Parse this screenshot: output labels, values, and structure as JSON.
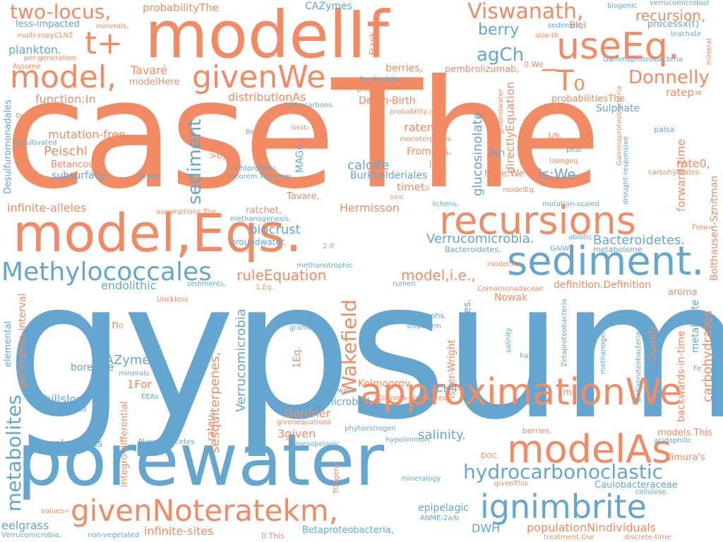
{
  "colors": {
    "orange": "#f28b63",
    "blue": "#64a6d0",
    "background": "#ffffff"
  },
  "words": {
    "gypsum": "gypsum",
    "caseThe": "caseThe",
    "modelIf": "modelIf",
    "porewater": "porewater",
    "modelEqs": "model,Eqs.",
    "approximationWe": "approximationWe",
    "modelAs": "modelAs",
    "recursions": "recursions",
    "sediment_dot": "sediment.",
    "givenNoteratekm": "givenNoteratekm,",
    "ignimbrite": "ignimbrite",
    "useEq": "useEq.",
    "model_comma": "model,",
    "givenWe": "givenWe",
    "Methylococcales": "Methylococcales",
    "hydrocarbonoclastic": "hydrocarbonoclastic",
    "t_plus": "t+",
    "two_locus": "two-locus,",
    "Viswanath": "Viswanath,",
    "T_box": "̅T₀",
    "Donnelly": "Donnelly",
    "agCh": "agCh",
    "berry": "berry",
    "recursion": "recursion,",
    "Wakefield": "Wakefield",
    "metabolites": "metabolites",
    "sediment_v": "sediment",
    "Verrucomicrobia_dot": "Verrucomicrobia.",
    "Bacteroidetes_dot": "Bacteroidetes.",
    "model_ie": "model,i.e.,",
    "ruleEquation": "ruleEquation",
    "endolithic": "endolithic",
    "infinite_alleles": "infinite-alleles",
    "Hermisson": "Hermisson",
    "biocrust": "biocrust",
    "mutation_free": "mutation-free",
    "Peischl": "Peischl",
    "calcite": "calcite",
    "function_In": "function:In",
    "plankton": "plankton.",
    "Tavare_acc": "Tavaré",
    "distributionAs": "distributionAs",
    "ratem": "ratem,",
    "glucosinolate": "glucosinolate",
    "CAZyme": "CAZyme",
    "CAZymes": "CAZymes",
    "less_impacted": "less-impacted",
    "probabilityThe": "probabilityThe",
    "Blei": "Blei",
    "process": "processx(t)",
    "directlyEquation": "directlyEquation",
    "ratep": "ratep=",
    "rate0": "rate0,",
    "is_We": "is:We",
    "Sulphate": "Sulphate",
    "berries_comma": "berries,",
    "pembrolizumab": "pembrolizumab,",
    "modelHere": "modelHere",
    "Death_Birth": "Death-Birth",
    "Betancourt": "Betancourt",
    "subsurface": "subsurface",
    "MAGs": "MAGs.",
    "Burkholderiales": "Burkholderiales",
    "timet": "timet₀",
    "FromEqs": "FromEqs.",
    "fen": "fen",
    "have_We": "have:We",
    "forward_time": "forward-time",
    "carbohydrates_v": "carbohydrates",
    "Bolthausen": "Bolthausen-Sznitman",
    "sesquiterpenes": "sesquiterpenes,",
    "Verrucomicrobia_v": "Verrucomicrobia",
    "definition": "definition.Definition",
    "metabolite": "metabolite",
    "aroma": "aroma",
    "Nowak": "Nowak",
    "Durrett": "Durrett",
    "backwards": "backwards-in-time",
    "Kolmogrov": "Kolmogrov",
    "Fisher_Wright": "Fisher-Wright",
    "metatranscriptomes": "metatranscriptomes.",
    "CH4": "CH4",
    "microbial": "microbial",
    "salinity_dot": "salinity.",
    "Gardner": "Gardner",
    "given3": "3given",
    "For1": "1For",
    "borehole": "borehole",
    "hillslope": "hillslope",
    "calcareous": "calcareous",
    "eelgrass": "eelgrass",
    "infinite_sites": "infinite-sites",
    "DWH": "DWH",
    "populationN": "populationNindividuals",
    "Caulobacteraceae": "Caulobacteraceae",
    "epipelagic": "epipelagic",
    "Betaproteobacteria": "Betaproteobacteria,",
    "models_This": "models.This",
    "Kimuras": "Kimura's",
    "generation_interval": "generation-interval",
    "integro_differential": "integro-differential",
    "ratemu": "rateμ,",
    "elemental": "elemental",
    "n0": "n₀",
    "Eq1": "1Eq.",
    "m_abs": "|m|",
    "Desulfuromonadales": "Desulfuromonadales",
    "groundwater_dot": "groundwater.",
    "ratchet": "ratchet,",
    "Tavare": "Tavare,",
    "Chloroflexi": "Chloroflexi,",
    "theorem": "theorem.Theorem",
    "gt0": ">0,",
    "assumptions": "assumptions.The",
    "methanogenesis": "methanogenesis.",
    "Bacteroidetes_comma": "Bacteroidetes,",
    "metabolome": "metabolome",
    "GAIW": "GAIW",
    "abiotic": "abiotic",
    "methanotrophic": "methanotrophic",
    "model_As": "model:As",
    "rumen": "rumen",
    "Comamonadaceae": "Comamonadaceae",
    "Eq1_small": "1,Eq.",
    "If2": "2.If",
    "sediments": "sediments.",
    "Unckless": "Unckless",
    "sulfur": "sulfur",
    "methanotrophs": "methanotrophs.",
    "shipworm": "shipworm",
    "granite": "granite",
    "salinity_v": "salinity",
    "halite": "halite",
    "Zetaproteobacteria": "Zetaproteobacteria",
    "methanogen": "methanogen",
    "Deltaproteobacteria": "Deltaproteobacteria",
    "Fe": "Fe",
    "Gammaproteobacteria_v": "Gammaproteobacteria",
    "minerals": "minerals",
    "flavonoid": "flavonoid",
    "EEAs": "EEAs",
    "pore_water": "pore-water",
    "Gamma_distributed": "Gamma-distributed",
    "phytoestrogen": "phytoestrogen",
    "givenequations": "givenequations",
    "mesopelagic": "mesopelagic",
    "hypolimnion": "hypolimnion.",
    "berries_dot": "berries.",
    "acidophilic": "acidophilic",
    "DOC": "DOC.",
    "cellulose": "cellulose.",
    "mineralogy": "mineralogy",
    "givenThis": "givenThis",
    "Planctomycetes": "Planctomycetes",
    "TCRgene": "TCRgene",
    "values": "values=",
    "Verrucomicrobia_comma": "Verrucomicrobia,",
    "non_vegetated": "non-vegetated",
    "ANME": "ANME-2a/b",
    "This0": "0.This",
    "treatment": "treatment.Our",
    "discrete_time": "discrete-time",
    "verrucomicrobial": "verrucomicrobial",
    "biogenic": "biogenic",
    "sediment_comma": "sediment,",
    "leachate": "leachate",
    "size_th": "size-th",
    "mineral": "mineral",
    "Gammaproteobacteria": "Gammaproteobacteria",
    "We0": "0.We",
    "probabilitiesThe": "probabilitiesThe",
    "palsa": "palsa",
    "peat": "peat",
    "Usingeq": "Usingeq.",
    "carbohydrates_dot": "carbohydrates.",
    "one_N": "1/N,",
    "drought_responsive": "drought-responsive",
    "Fora": "Fora=",
    "mutation_scaled": "mutation-scaled",
    "lichens": "lichens.",
    "oxic": "oxic",
    "modelEq": "modelEq.",
    "monoterpenes": "monoterpenes",
    "probability_q": "probability,q,",
    "groundwater_v": "groundwater",
    "hydrocarbons": "hydrocarbons.",
    "ferrihydrite": "ferrihydrite",
    "D_to_J": "D-to-J",
    "limit": "limit₀",
    "Beta2": "Beta(2",
    "uncultivated": "uncultivated",
    "zero_s": "0s",
    "to_We": "to:We",
    "minerals_comma": "minerals,",
    "multi_copy": "multi-copyCLN2",
    "per_generation": "per-generation",
    "Assume": "Assume",
    "Frank": "Frank",
    "close_brace": "}"
  }
}
